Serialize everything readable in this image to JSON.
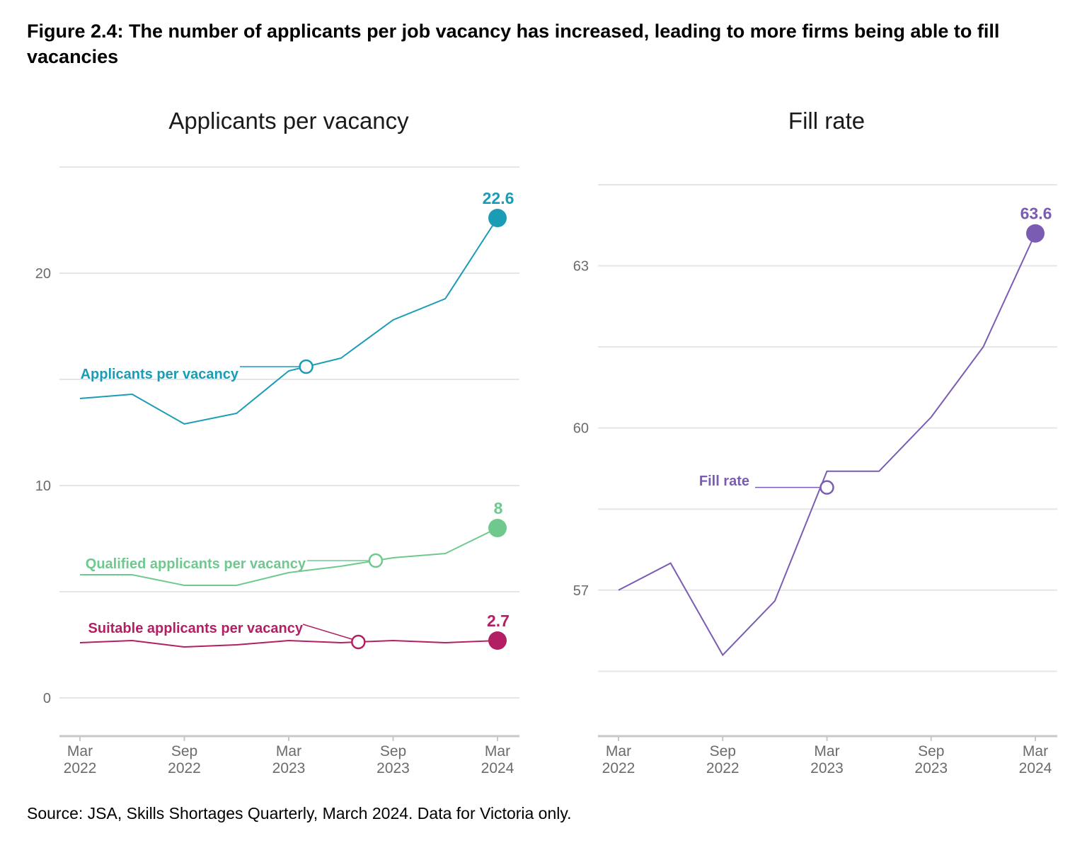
{
  "figure_title": "Figure 2.4: The number of applicants per job vacancy has increased, leading to more firms being able to fill vacancies",
  "source": "Source: JSA, Skills Shortages Quarterly, March 2024. Data for Victoria only.",
  "colors": {
    "applicants": "#1a9cb5",
    "qualified": "#6fc98f",
    "suitable": "#b31f63",
    "fill_rate": "#7a5cb3",
    "grid": "#e6e6e6",
    "axis": "#c8c8c8"
  },
  "chart_data": [
    {
      "type": "line",
      "title": "Applicants per vacancy",
      "xlabel": "",
      "ylabel": "",
      "x": [
        "2022-03",
        "2022-06",
        "2022-09",
        "2022-12",
        "2023-03",
        "2023-06",
        "2023-09",
        "2023-12",
        "2024-03"
      ],
      "x_ticks": [
        {
          "x": "2022-03",
          "label": [
            "Mar",
            "2022"
          ]
        },
        {
          "x": "2022-09",
          "label": [
            "Sep",
            "2022"
          ]
        },
        {
          "x": "2023-03",
          "label": [
            "Mar",
            "2023"
          ]
        },
        {
          "x": "2023-09",
          "label": [
            "Sep",
            "2023"
          ]
        },
        {
          "x": "2024-03",
          "label": [
            "Mar",
            "2024"
          ]
        }
      ],
      "ylim": [
        -1.8,
        24.8
      ],
      "y_ticks": [
        0,
        10,
        20
      ],
      "y_gridlines": [
        0,
        5,
        10,
        15,
        20,
        25
      ],
      "grid": true,
      "series": [
        {
          "name": "Applicants per vacancy",
          "color_key": "applicants",
          "values": [
            14.1,
            14.3,
            12.9,
            13.4,
            15.4,
            16.0,
            17.8,
            18.8,
            22.6
          ],
          "label_marker_x": "2023-04",
          "end_label": "22.6"
        },
        {
          "name": "Qualified applicants per vacancy",
          "color_key": "qualified",
          "values": [
            5.8,
            5.8,
            5.3,
            5.3,
            5.9,
            6.2,
            6.6,
            6.8,
            8.0
          ],
          "label_marker_x": "2023-08",
          "end_label": "8"
        },
        {
          "name": "Suitable applicants per vacancy",
          "color_key": "suitable",
          "values": [
            2.6,
            2.7,
            2.4,
            2.5,
            2.7,
            2.6,
            2.7,
            2.6,
            2.7
          ],
          "label_marker_x": "2023-07",
          "end_label": "2.7"
        }
      ]
    },
    {
      "type": "line",
      "title": "Fill rate",
      "xlabel": "",
      "ylabel": "",
      "x": [
        "2022-03",
        "2022-06",
        "2022-09",
        "2022-12",
        "2023-03",
        "2023-06",
        "2023-09",
        "2023-12",
        "2024-03"
      ],
      "x_ticks": [
        {
          "x": "2022-03",
          "label": [
            "Mar",
            "2022"
          ]
        },
        {
          "x": "2022-09",
          "label": [
            "Sep",
            "2022"
          ]
        },
        {
          "x": "2023-03",
          "label": [
            "Mar",
            "2023"
          ]
        },
        {
          "x": "2023-09",
          "label": [
            "Sep",
            "2023"
          ]
        },
        {
          "x": "2024-03",
          "label": [
            "Mar",
            "2024"
          ]
        }
      ],
      "ylim": [
        54.3,
        64.5
      ],
      "y_ticks": [
        57,
        60,
        63
      ],
      "y_gridlines": [
        55.5,
        57,
        58.5,
        60,
        61.5,
        63,
        64.5
      ],
      "grid": true,
      "series": [
        {
          "name": "Fill rate",
          "color_key": "fill_rate",
          "values": [
            57.0,
            57.5,
            55.8,
            56.8,
            59.2,
            59.2,
            60.2,
            61.5,
            63.6
          ],
          "label_marker_x": "2023-03",
          "label_marker_value": 58.9,
          "end_label": "63.6"
        }
      ]
    }
  ]
}
